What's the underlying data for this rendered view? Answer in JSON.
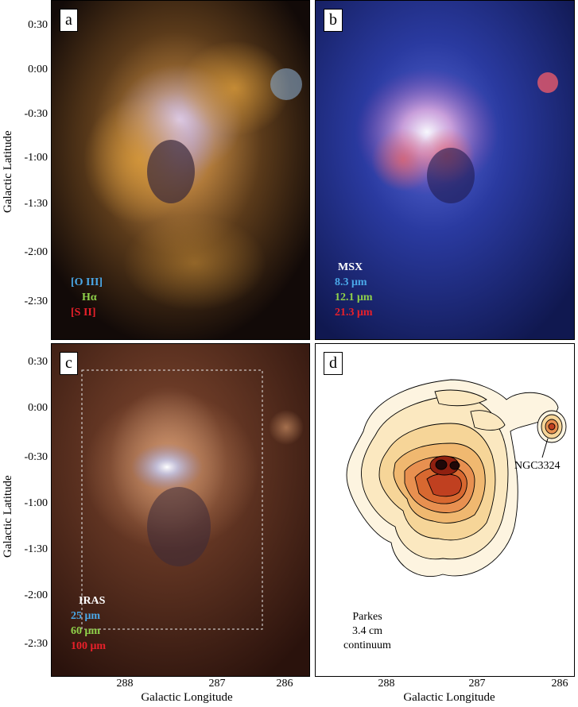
{
  "panels": {
    "a": {
      "letter": "a",
      "legend": [
        "[O III]",
        "Hα",
        "[S II]"
      ]
    },
    "b": {
      "letter": "b",
      "legend_title": "MSX",
      "legend": [
        "8.3 μm",
        "12.1 μm",
        "21.3 μm"
      ]
    },
    "c": {
      "letter": "c",
      "legend_title": "IRAS",
      "legend": [
        "25 μm",
        "60 μm",
        "100 μm"
      ]
    },
    "d": {
      "letter": "d",
      "source_label": "NGC3324",
      "caption": [
        "Parkes",
        "3.4 cm",
        "continuum"
      ]
    }
  },
  "axes": {
    "ylabel": "Galactic Latitude",
    "xlabel": "Galactic Longitude",
    "yticks": [
      "0:30",
      "0:00",
      "-0:30",
      "-1:00",
      "-1:30",
      "-2:00",
      "-2:30"
    ],
    "xticks": [
      "288",
      "287",
      "286"
    ]
  },
  "colors": {
    "legend_blue": "#4aa8e8",
    "legend_green": "#8fd14a",
    "legend_red": "#e8202a",
    "legend_white": "#ffffff"
  }
}
